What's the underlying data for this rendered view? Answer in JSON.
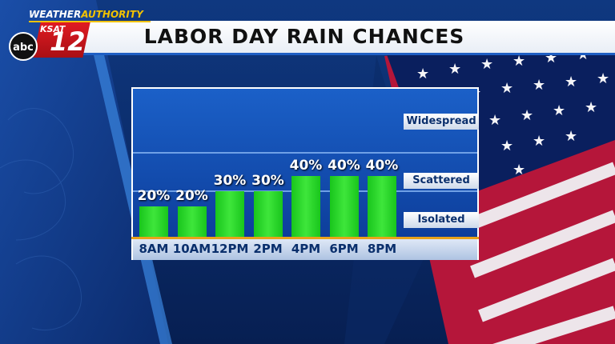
{
  "header": {
    "title": "LABOR DAY RAIN CHANCES",
    "brand_top": "WEATHER",
    "brand_top_accent": "AUTHORITY",
    "station": "KSAT",
    "channel": "12",
    "network": "abc"
  },
  "colors": {
    "bar": "#2fd12c",
    "header_blue": "#1f5fc4",
    "baseline": "#e8a21a",
    "brand_red": "#d01820"
  },
  "categories_legend": [
    "Widespread",
    "Scattered",
    "Isolated"
  ],
  "chart_data": {
    "type": "bar",
    "title": "LABOR DAY RAIN CHANCES",
    "categories": [
      "8AM",
      "10AM",
      "12PM",
      "2PM",
      "4PM",
      "6PM",
      "8PM"
    ],
    "values": [
      20,
      20,
      30,
      30,
      40,
      40,
      40
    ],
    "value_labels": [
      "20%",
      "20%",
      "30%",
      "30%",
      "40%",
      "40%",
      "40%"
    ],
    "ylim": [
      0,
      100
    ],
    "threshold_labels": [
      "Widespread",
      "Scattered",
      "Isolated"
    ],
    "grid": false
  }
}
